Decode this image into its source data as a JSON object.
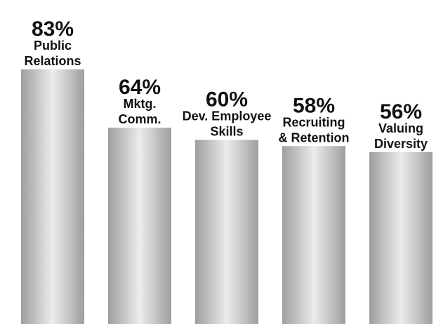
{
  "chart_data": {
    "type": "bar",
    "categories": [
      [
        "Public",
        "Relations"
      ],
      [
        "Mktg.",
        "Comm."
      ],
      [
        "Dev. Employee",
        "Skills"
      ],
      [
        "Recruiting",
        "& Retention"
      ],
      [
        "Valuing",
        "Diversity"
      ]
    ],
    "values": [
      83,
      64,
      60,
      58,
      56
    ],
    "value_labels": [
      "83%",
      "64%",
      "60%",
      "58%",
      "56%"
    ],
    "ylim": [
      0,
      100
    ],
    "grid": false,
    "legend": "none"
  },
  "colors": {
    "bar_edge": "#9e9e9e",
    "bar_highlight": "#ececec",
    "text": "#111111"
  }
}
